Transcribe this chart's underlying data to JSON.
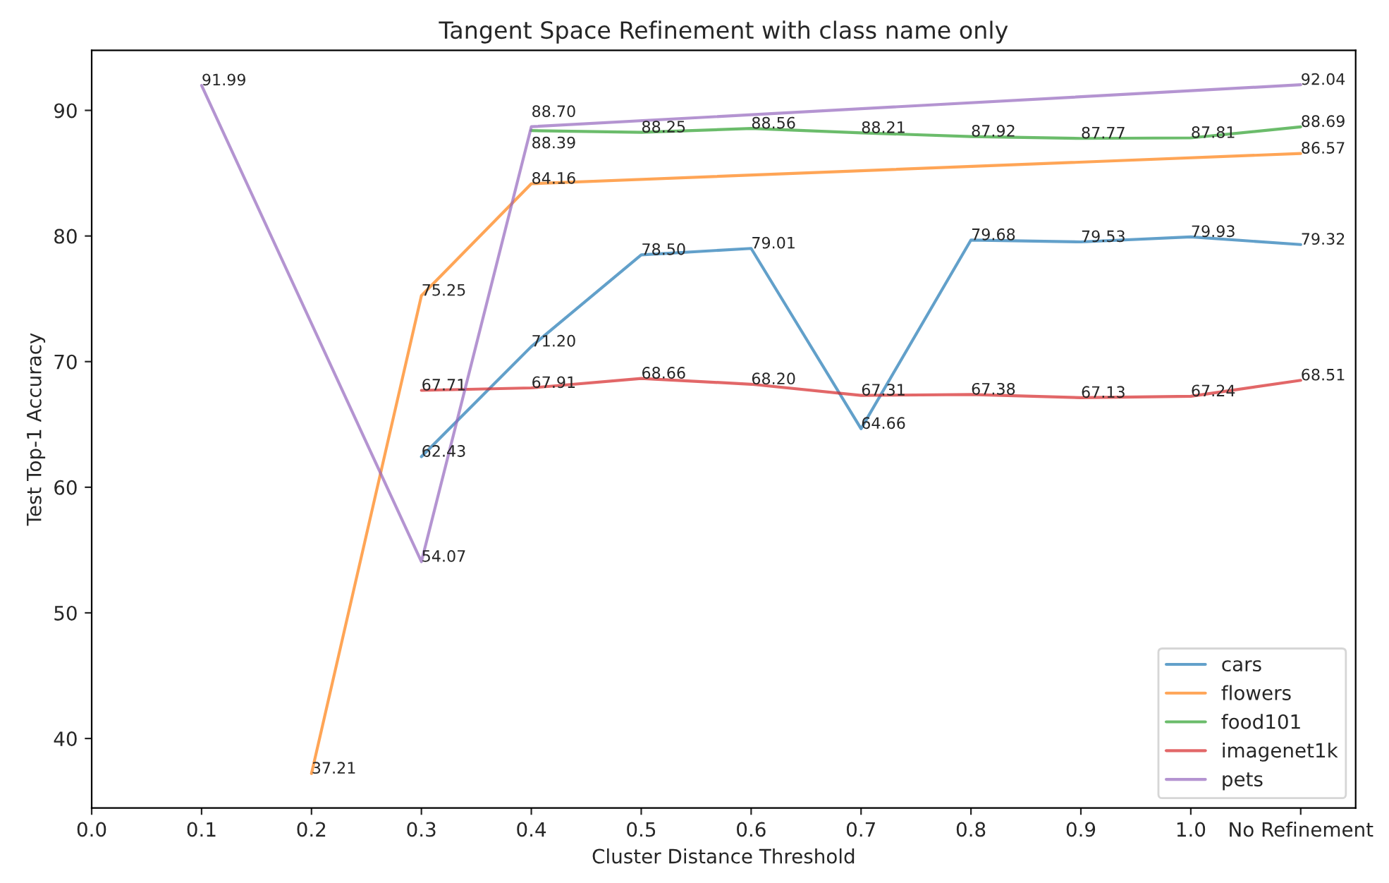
{
  "chart_data": {
    "type": "line",
    "title": "Tangent Space Refinement with class name only",
    "xlabel": "Cluster Distance Threshold",
    "ylabel": "Test Top-1 Accuracy",
    "xlim": [
      0.0,
      1.15
    ],
    "xticks": [
      {
        "value": 0.0,
        "label": "0.0"
      },
      0.1,
      0.2,
      0.3,
      0.4,
      0.5,
      0.6,
      0.7,
      0.8,
      0.9,
      {
        "value": 1.0,
        "label": "1.0"
      },
      {
        "value": 1.1,
        "label": "No Refinement"
      }
    ],
    "ylim": [
      34.47,
      94.78
    ],
    "yticks": [
      40,
      50,
      60,
      70,
      80,
      90
    ],
    "grid": false,
    "legend": "bottom right",
    "series": [
      {
        "name": "cars",
        "color": "#1f77b4",
        "x": [
          0.3,
          0.4,
          0.5,
          0.6,
          0.7,
          0.8,
          0.9,
          1.0,
          1.1
        ],
        "values": [
          62.43,
          71.2,
          78.5,
          79.01,
          64.66,
          79.68,
          79.53,
          79.93,
          79.32
        ],
        "value_labels": [
          "62.43",
          "71.20",
          "78.50",
          "79.01",
          "64.66",
          "79.68",
          "79.53",
          "79.93",
          "79.32"
        ]
      },
      {
        "name": "flowers",
        "color": "#ff7f0e",
        "x": [
          0.2,
          0.3,
          0.4,
          1.1
        ],
        "values": [
          37.21,
          75.25,
          84.16,
          86.57
        ],
        "value_labels": [
          "37.21",
          "75.25",
          "84.16",
          "86.57"
        ]
      },
      {
        "name": "food101",
        "color": "#2ca02c",
        "x": [
          0.4,
          0.5,
          0.6,
          0.7,
          0.8,
          0.9,
          1.0,
          1.1
        ],
        "values": [
          88.39,
          88.25,
          88.56,
          88.21,
          87.92,
          87.77,
          87.81,
          88.69
        ],
        "value_labels": [
          "88.39",
          "88.25",
          "88.56",
          "88.21",
          "87.92",
          "87.77",
          "87.81",
          "88.69"
        ]
      },
      {
        "name": "imagenet1k",
        "color": "#d62728",
        "x": [
          0.3,
          0.4,
          0.5,
          0.6,
          0.7,
          0.8,
          0.9,
          1.0,
          1.1
        ],
        "values": [
          67.71,
          67.91,
          68.66,
          68.2,
          67.31,
          67.38,
          67.13,
          67.24,
          68.51
        ],
        "value_labels": [
          "67.71",
          "67.91",
          "68.66",
          "68.20",
          "67.31",
          "67.38",
          "67.13",
          "67.24",
          "68.51"
        ]
      },
      {
        "name": "pets",
        "color": "#9467bd",
        "x": [
          0.1,
          0.3,
          0.4,
          1.1
        ],
        "values": [
          91.99,
          54.07,
          88.7,
          92.04
        ],
        "value_labels": [
          "91.99",
          "54.07",
          "88.70",
          "92.04"
        ]
      }
    ]
  }
}
